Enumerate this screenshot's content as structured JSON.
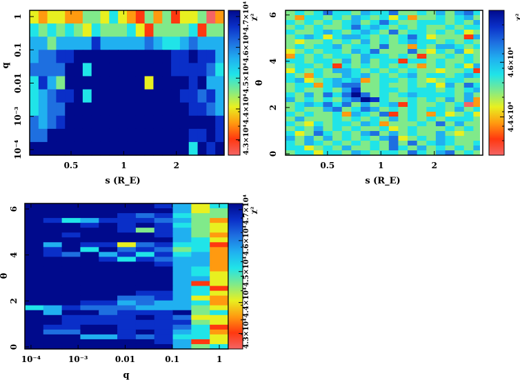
{
  "colormap": [
    "#000a8c",
    "#0a2fc8",
    "#1e6fe0",
    "#20b0f0",
    "#20e4e8",
    "#80ea8a",
    "#e8f020",
    "#ff9a10",
    "#ff3810",
    "#f46464"
  ],
  "level_note": "cell values are colour levels 0-9; chi2 = vmax - level/9*(vmax-vmin)",
  "chart_data": [
    {
      "type": "heatmap",
      "id": "s-q",
      "xlabel": "s (R_E)",
      "ylabel": "q",
      "xscale": "log",
      "yscale": "log",
      "xlim": [
        0.29,
        3.75
      ],
      "ylim": [
        6.8e-05,
        1.54
      ],
      "xticks": [
        {
          "v": 0.5,
          "label": "0.5"
        },
        {
          "v": 1,
          "label": "1"
        },
        {
          "v": 2,
          "label": "2"
        }
      ],
      "yticks": [
        {
          "v": 1,
          "label": "1"
        },
        {
          "v": 0.1,
          "label": "0.1"
        },
        {
          "v": 0.01,
          "label": "0.01"
        },
        {
          "v": 0.001,
          "label": "10⁻³"
        },
        {
          "v": 0.0001,
          "label": "10⁻⁴"
        }
      ],
      "colorbar": {
        "label": "χ²",
        "vmin": 42500,
        "vmax": 47200,
        "ticks": [
          {
            "v": 47000,
            "label": "4.7×10⁴"
          },
          {
            "v": 46000,
            "label": "4.6×10⁴"
          },
          {
            "v": 45000,
            "label": "4.5×10⁴"
          },
          {
            "v": 44000,
            "label": "4.4×10⁴"
          },
          {
            "v": 43000,
            "label": "4.3×10⁴"
          }
        ]
      },
      "rows_top_to_bottom": [
        "6766775564678575866597",
        "4545456455546855554855",
        "3353333133333234432333",
        "3221100000000000110113",
        "2222004000000000111124",
        "4135000000000600001033",
        "4321104000000000011213",
        "4322000000000000001123",
        "2321000000000000000001",
        "2200000000000000001101",
        "0000000000000000004010"
      ]
    },
    {
      "type": "heatmap",
      "id": "s-theta",
      "xlabel": "s (R_E)",
      "ylabel": "θ",
      "xscale": "log",
      "yscale": "linear",
      "xlim": [
        0.29,
        3.75
      ],
      "ylim": [
        -0.06,
        6.2
      ],
      "xticks": [
        {
          "v": 0.5,
          "label": "0.5"
        },
        {
          "v": 1,
          "label": "1"
        },
        {
          "v": 2,
          "label": "2"
        }
      ],
      "yticks": [
        {
          "v": 0,
          "label": "0"
        },
        {
          "v": 2,
          "label": "2"
        },
        {
          "v": 4,
          "label": "4"
        },
        {
          "v": 6,
          "label": "6"
        }
      ],
      "colorbar": {
        "label": "χ²",
        "vmin": 42600,
        "vmax": 47900,
        "ticks": [
          {
            "v": 46000,
            "label": "4.6×10⁴"
          },
          {
            "v": 44000,
            "label": "4.4×10⁴"
          }
        ]
      },
      "rows_top_to_bottom": [
        "545424453442554535324",
        "574454534546475545435",
        "454545435424554445453",
        "545455424345454554544",
        "455434543452544545465",
        "543464334545424655583",
        "565545453545434454545",
        "545443544525574533454",
        "654544534255525645365",
        "745454453445458554545",
        "445445353544844545545",
        "544548454545457545463",
        "645453345454545565548",
        "457455343545435445434",
        "436543437544545654455",
        "544743225545545463524",
        "545545315544544454543",
        "453524202545434444535",
        "354545320145545453537",
        "543424253543845545497",
        "545532542354545445354",
        "454554734528545746546",
        "535554545453545454445",
        "456454453475554525355",
        "545354545546545554545",
        "465245453253545535655",
        "353535454532654534555",
        "453454545452525434554",
        "446545355452453545453",
        "544644534544524532545"
      ]
    },
    {
      "type": "heatmap",
      "id": "q-theta",
      "xlabel": "q",
      "ylabel": "θ",
      "xscale": "log",
      "yscale": "linear",
      "xlim": [
        7.4e-05,
        1.55
      ],
      "ylim": [
        -0.09,
        6.24
      ],
      "xticks": [
        {
          "v": 0.0001,
          "label": "10⁻⁴"
        },
        {
          "v": 0.001,
          "label": "10⁻³"
        },
        {
          "v": 0.01,
          "label": "0.01"
        },
        {
          "v": 0.1,
          "label": "0.1"
        },
        {
          "v": 1,
          "label": "1"
        }
      ],
      "yticks": [
        {
          "v": 0,
          "label": "0"
        },
        {
          "v": 2,
          "label": "2"
        },
        {
          "v": 4,
          "label": "4"
        },
        {
          "v": 6,
          "label": "6"
        }
      ],
      "colorbar": {
        "label": "χ²",
        "vmin": 42500,
        "vmax": 47200,
        "ticks": [
          {
            "v": 47000,
            "label": "4.7×10⁴"
          },
          {
            "v": 46000,
            "label": "4.6×10⁴"
          },
          {
            "v": 45000,
            "label": "4.5×10⁴"
          },
          {
            "v": 44000,
            "label": "4.4×10⁴"
          },
          {
            "v": 43000,
            "label": "4.3×10⁴"
          }
        ]
      },
      "rows_top_to_bottom": [
        "00000001364",
        "00000000365",
        "00000121455",
        "01431112357",
        "00010101456",
        "00000151356",
        "00100001357",
        "00000000346",
        "03011621448",
        "01040212547",
        "01203141437",
        "00001412337",
        "00000001337",
        "00000000347",
        "00000000346",
        "00000000336",
        "00000000386",
        "00000000348",
        "00000011346",
        "00000221367",
        "00011323347",
        "43122233356",
        "03002111054",
        "00111101266",
        "00111111156",
        "01100111248",
        "02200101347",
        "00033121446",
        "00000001386",
        "00000000354"
      ]
    }
  ]
}
